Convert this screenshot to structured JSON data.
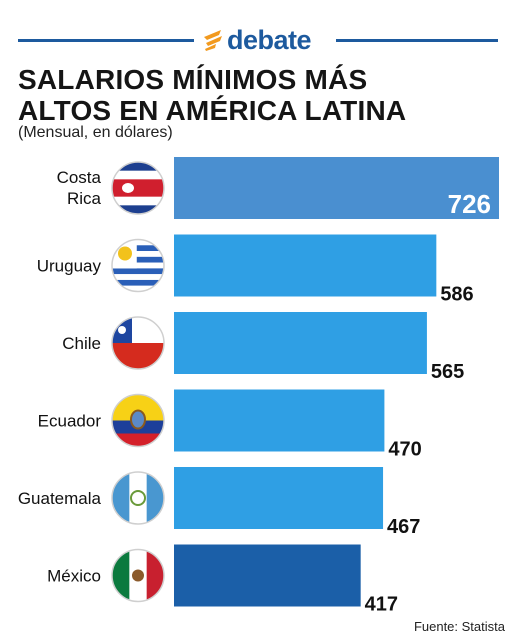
{
  "brand": {
    "name": "debate",
    "logo_icon": "flame-icon",
    "accent": "#1d5a9e",
    "flame_color": "#f29a1f"
  },
  "header": {
    "title_line1": "SALARIOS MÍNIMOS MÁS",
    "title_line2": "ALTOS EN AMÉRICA LATINA",
    "subtitle": "(Mensual, en dólares)"
  },
  "chart_data": {
    "type": "bar",
    "orientation": "horizontal",
    "categories": [
      [
        "Costa",
        "Rica"
      ],
      [
        "Uruguay"
      ],
      [
        "Chile"
      ],
      [
        "Ecuador"
      ],
      [
        "Guatemala"
      ],
      [
        "México"
      ]
    ],
    "flags": [
      "costa-rica-flag-icon",
      "uruguay-flag-icon",
      "chile-flag-icon",
      "ecuador-flag-icon",
      "guatemala-flag-icon",
      "mexico-flag-icon"
    ],
    "values": [
      726,
      586,
      565,
      470,
      467,
      417
    ],
    "value_labels": [
      "726",
      "586",
      "565",
      "470",
      "467",
      "417"
    ],
    "bar_colors": [
      "#4a8fd0",
      "#2f9fe4",
      "#2f9fe4",
      "#2f9fe4",
      "#2f9fe4",
      "#1b5fa8"
    ],
    "xlim": [
      0,
      726
    ],
    "grid": false,
    "legend": "none"
  },
  "footer": {
    "source": "Fuente: Statista"
  }
}
